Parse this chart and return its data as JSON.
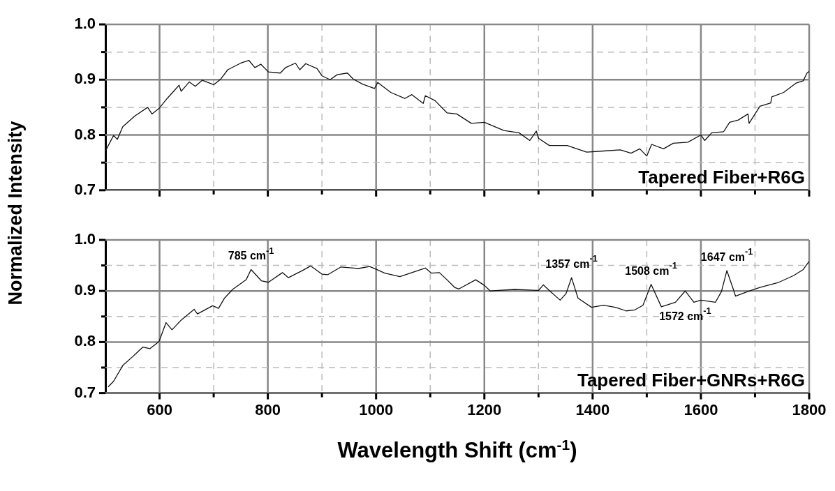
{
  "chart_data": [
    {
      "type": "line",
      "ylabel": "Normalized Intensity",
      "xlim": [
        500,
        1800
      ],
      "ylim": [
        0.7,
        1.0
      ],
      "xticks": [
        600,
        {
          "value": 700,
          "label": null
        },
        800,
        {
          "value": 900,
          "label": null
        },
        1000,
        {
          "value": 1100,
          "label": null
        },
        1200,
        {
          "value": 1300,
          "label": null
        },
        1400,
        {
          "value": 1500,
          "label": null
        },
        1600,
        {
          "value": 1700,
          "label": null
        },
        1800
      ],
      "yticks": [
        0.7,
        {
          "value": 0.75,
          "label": null
        },
        0.8,
        {
          "value": 0.85,
          "label": null
        },
        0.9,
        {
          "value": 0.95,
          "label": null
        },
        {
          "value": 1.0,
          "label": "1.0"
        }
      ],
      "tick_labels": "y",
      "grid": true,
      "legend": false,
      "marker": "none",
      "line_style": "solid",
      "series": [
        {
          "name": "Tapered Fiber+R6G",
          "color": "#111111",
          "x": [
            500,
            515,
            522,
            532,
            554,
            578,
            586,
            600,
            614,
            636,
            640,
            655,
            666,
            679,
            700,
            713,
            726,
            750,
            765,
            776,
            787,
            801,
            823,
            833,
            851,
            859,
            870,
            891,
            900,
            915,
            928,
            947,
            958,
            975,
            997,
            1003,
            1027,
            1053,
            1066,
            1087,
            1091,
            1109,
            1131,
            1149,
            1176,
            1200,
            1236,
            1264,
            1284,
            1296,
            1300,
            1320,
            1353,
            1389,
            1420,
            1451,
            1471,
            1487,
            1500,
            1509,
            1531,
            1549,
            1576,
            1600,
            1607,
            1620,
            1642,
            1653,
            1669,
            1687,
            1689,
            1709,
            1729,
            1731,
            1753,
            1776,
            1789,
            1796,
            1800
          ],
          "values": [
            0.771,
            0.799,
            0.792,
            0.815,
            0.834,
            0.85,
            0.838,
            0.849,
            0.866,
            0.89,
            0.879,
            0.896,
            0.888,
            0.899,
            0.891,
            0.901,
            0.918,
            0.93,
            0.935,
            0.922,
            0.928,
            0.914,
            0.912,
            0.922,
            0.93,
            0.918,
            0.929,
            0.92,
            0.907,
            0.9,
            0.909,
            0.912,
            0.901,
            0.892,
            0.884,
            0.895,
            0.877,
            0.866,
            0.873,
            0.857,
            0.871,
            0.862,
            0.84,
            0.838,
            0.821,
            0.823,
            0.808,
            0.804,
            0.79,
            0.807,
            0.794,
            0.781,
            0.781,
            0.769,
            0.771,
            0.773,
            0.767,
            0.775,
            0.762,
            0.783,
            0.775,
            0.785,
            0.787,
            0.8,
            0.79,
            0.804,
            0.806,
            0.823,
            0.827,
            0.838,
            0.821,
            0.852,
            0.858,
            0.869,
            0.877,
            0.894,
            0.898,
            0.912,
            0.915
          ]
        }
      ]
    },
    {
      "type": "line",
      "xlabel": "Wavelength Shift (cm$^{-1}$)",
      "xlim": [
        500,
        1800
      ],
      "ylim": [
        0.7,
        1.0
      ],
      "xticks": [
        600,
        {
          "value": 700,
          "label": null
        },
        800,
        {
          "value": 900,
          "label": null
        },
        1000,
        {
          "value": 1100,
          "label": null
        },
        1200,
        {
          "value": 1300,
          "label": null
        },
        1400,
        {
          "value": 1500,
          "label": null
        },
        1600,
        {
          "value": 1700,
          "label": null
        },
        1800
      ],
      "yticks": [
        0.7,
        {
          "value": 0.75,
          "label": null
        },
        0.8,
        {
          "value": 0.85,
          "label": null
        },
        0.9,
        {
          "value": 0.95,
          "label": null
        },
        {
          "value": 1.0,
          "label": "1.0"
        }
      ],
      "grid": true,
      "legend": false,
      "marker": "none",
      "line_style": "solid",
      "annotations": [
        {
          "text": "785 cm$^{-1}$",
          "x": 769,
          "y": 0.942
        },
        {
          "text": "1357 cm$^{-1}$",
          "x": 1361,
          "y": 0.926
        },
        {
          "text": "1508 cm$^{-1}$",
          "x": 1508,
          "y": 0.913
        },
        {
          "text": "1572 cm$^{-1}$",
          "x": 1571,
          "y": 0.9
        },
        {
          "text": "1647 cm$^{-1}$",
          "x": 1648,
          "y": 0.94
        }
      ],
      "series": [
        {
          "name": "Tapered Fiber+GNRs+R6G",
          "color": "#111111",
          "x": [
            505,
            515,
            532,
            550,
            569,
            582,
            599,
            612,
            623,
            640,
            664,
            670,
            698,
            709,
            720,
            735,
            760,
            769,
            788,
            801,
            827,
            838,
            864,
            879,
            900,
            911,
            935,
            967,
            988,
            1001,
            1016,
            1044,
            1066,
            1091,
            1102,
            1117,
            1130,
            1145,
            1153,
            1184,
            1200,
            1211,
            1256,
            1300,
            1309,
            1322,
            1340,
            1351,
            1361,
            1373,
            1398,
            1420,
            1442,
            1462,
            1478,
            1493,
            1508,
            1527,
            1553,
            1571,
            1587,
            1600,
            1627,
            1638,
            1648,
            1660,
            1664,
            1687,
            1709,
            1744,
            1771,
            1789,
            1800
          ],
          "values": [
            0.712,
            0.723,
            0.754,
            0.771,
            0.79,
            0.787,
            0.801,
            0.838,
            0.824,
            0.843,
            0.864,
            0.855,
            0.871,
            0.866,
            0.886,
            0.903,
            0.922,
            0.942,
            0.92,
            0.917,
            0.936,
            0.926,
            0.94,
            0.949,
            0.933,
            0.932,
            0.947,
            0.944,
            0.948,
            0.942,
            0.935,
            0.928,
            0.936,
            0.945,
            0.935,
            0.936,
            0.923,
            0.907,
            0.904,
            0.922,
            0.911,
            0.9,
            0.903,
            0.901,
            0.912,
            0.899,
            0.882,
            0.895,
            0.926,
            0.886,
            0.868,
            0.872,
            0.868,
            0.861,
            0.863,
            0.872,
            0.913,
            0.869,
            0.878,
            0.9,
            0.878,
            0.882,
            0.878,
            0.899,
            0.94,
            0.903,
            0.89,
            0.899,
            0.907,
            0.917,
            0.93,
            0.942,
            0.958
          ]
        }
      ]
    }
  ]
}
